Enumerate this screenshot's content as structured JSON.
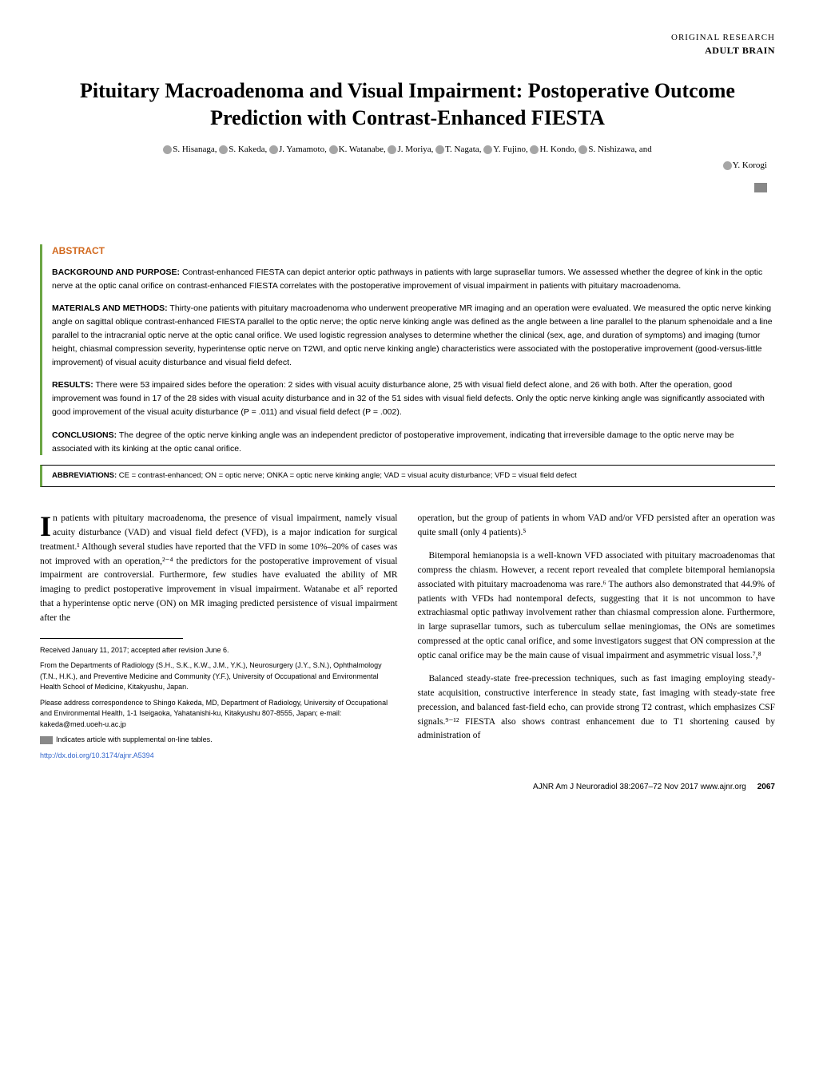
{
  "header": {
    "research_type": "ORIGINAL RESEARCH",
    "category": "ADULT BRAIN"
  },
  "title": "Pituitary Macroadenoma and Visual Impairment: Postoperative Outcome Prediction with Contrast-Enhanced FIESTA",
  "authors_line1": "S. Hisanaga, S. Kakeda, J. Yamamoto, K. Watanabe, J. Moriya, T. Nagata, Y. Fujino, H. Kondo, S. Nishizawa, and",
  "authors_line2": "Y. Korogi",
  "abstract": {
    "heading": "ABSTRACT",
    "background": {
      "label": "BACKGROUND AND PURPOSE:",
      "text": "Contrast-enhanced FIESTA can depict anterior optic pathways in patients with large suprasellar tumors. We assessed whether the degree of kink in the optic nerve at the optic canal orifice on contrast-enhanced FIESTA correlates with the postoperative improvement of visual impairment in patients with pituitary macroadenoma."
    },
    "methods": {
      "label": "MATERIALS AND METHODS:",
      "text": "Thirty-one patients with pituitary macroadenoma who underwent preoperative MR imaging and an operation were evaluated. We measured the optic nerve kinking angle on sagittal oblique contrast-enhanced FIESTA parallel to the optic nerve; the optic nerve kinking angle was defined as the angle between a line parallel to the planum sphenoidale and a line parallel to the intracranial optic nerve at the optic canal orifice. We used logistic regression analyses to determine whether the clinical (sex, age, and duration of symptoms) and imaging (tumor height, chiasmal compression severity, hyperintense optic nerve on T2WI, and optic nerve kinking angle) characteristics were associated with the postoperative improvement (good-versus-little improvement) of visual acuity disturbance and visual field defect."
    },
    "results": {
      "label": "RESULTS:",
      "text": "There were 53 impaired sides before the operation: 2 sides with visual acuity disturbance alone, 25 with visual field defect alone, and 26 with both. After the operation, good improvement was found in 17 of the 28 sides with visual acuity disturbance and in 32 of the 51 sides with visual field defects. Only the optic nerve kinking angle was significantly associated with good improvement of the visual acuity disturbance (P = .011) and visual field defect (P = .002)."
    },
    "conclusions": {
      "label": "CONCLUSIONS:",
      "text": "The degree of the optic nerve kinking angle was an independent predictor of postoperative improvement, indicating that irreversible damage to the optic nerve may be associated with its kinking at the optic canal orifice."
    }
  },
  "abbreviations": {
    "label": "ABBREVIATIONS:",
    "text": "CE = contrast-enhanced; ON = optic nerve; ONKA = optic nerve kinking angle; VAD = visual acuity disturbance; VFD = visual field defect"
  },
  "body": {
    "col1_para1": "n patients with pituitary macroadenoma, the presence of visual impairment, namely visual acuity disturbance (VAD) and visual field defect (VFD), is a major indication for surgical treatment.¹ Although several studies have reported that the VFD in some 10%–20% of cases was not improved with an operation,²⁻⁴ the predictors for the postoperative improvement of visual impairment are controversial. Furthermore, few studies have evaluated the ability of MR imaging to predict postoperative improvement in visual impairment. Watanabe et al⁵ reported that a hyperintense optic nerve (ON) on MR imaging predicted persistence of visual impairment after the",
    "col2_para1": "operation, but the group of patients in whom VAD and/or VFD persisted after an operation was quite small (only 4 patients).⁵",
    "col2_para2": "Bitemporal hemianopsia is a well-known VFD associated with pituitary macroadenomas that compress the chiasm. However, a recent report revealed that complete bitemporal hemianopsia associated with pituitary macroadenoma was rare.⁶ The authors also demonstrated that 44.9% of patients with VFDs had nontemporal defects, suggesting that it is not uncommon to have extrachiasmal optic pathway involvement rather than chiasmal compression alone. Furthermore, in large suprasellar tumors, such as tuberculum sellae meningiomas, the ONs are sometimes compressed at the optic canal orifice, and some investigators suggest that ON compression at the optic canal orifice may be the main cause of visual impairment and asymmetric visual loss.⁷,⁸",
    "col2_para3": "Balanced steady-state free-precession techniques, such as fast imaging employing steady-state acquisition, constructive interference in steady state, fast imaging with steady-state free precession, and balanced fast-field echo, can provide strong T2 contrast, which emphasizes CSF signals.⁹⁻¹² FIESTA also shows contrast enhancement due to T1 shortening caused by administration of"
  },
  "footnotes": {
    "received": "Received January 11, 2017; accepted after revision June 6.",
    "from": "From the Departments of Radiology (S.H., S.K., K.W., J.M., Y.K.), Neurosurgery (J.Y., S.N.), Ophthalmology (T.N., H.K.), and Preventive Medicine and Community (Y.F.), University of Occupational and Environmental Health School of Medicine, Kitakyushu, Japan.",
    "correspondence": "Please address correspondence to Shingo Kakeda, MD, Department of Radiology, University of Occupational and Environmental Health, 1-1 Iseigaoka, Yahatanishi-ku, Kitakyushu 807-8555, Japan; e-mail: kakeda@med.uoeh-u.ac.jp",
    "supplemental": "Indicates article with supplemental on-line tables.",
    "doi": "http://dx.doi.org/10.3174/ajnr.A5394"
  },
  "footer": {
    "citation": "AJNR Am J Neuroradiol 38:2067–72   Nov 2017   www.ajnr.org",
    "page": "2067"
  }
}
